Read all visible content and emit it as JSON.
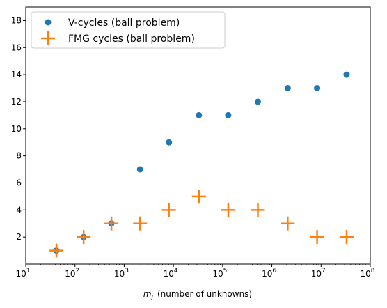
{
  "chart_data": {
    "type": "scatter",
    "xscale": "log",
    "xlim": [
      10,
      100000000
    ],
    "ylim": [
      0,
      19
    ],
    "grid": false,
    "legend_position": "top-left",
    "xlabel_math": "m",
    "xlabel_sub": "J",
    "xlabel_text": "(number of unknowns)",
    "x_tick_labels": [
      {
        "base": "10",
        "exp": "1"
      },
      {
        "base": "10",
        "exp": "2"
      },
      {
        "base": "10",
        "exp": "3"
      },
      {
        "base": "10",
        "exp": "4"
      },
      {
        "base": "10",
        "exp": "5"
      },
      {
        "base": "10",
        "exp": "6"
      },
      {
        "base": "10",
        "exp": "7"
      },
      {
        "base": "10",
        "exp": "8"
      }
    ],
    "y_ticks": [
      2,
      4,
      6,
      8,
      10,
      12,
      14,
      16,
      18
    ],
    "series": [
      {
        "name": "V-cycles (ball problem)",
        "marker": "circle",
        "color": "#1f77b4",
        "x": [
          42,
          150,
          550,
          2100,
          8100,
          33000,
          130000,
          520000,
          2100000,
          8300000,
          33000000
        ],
        "y": [
          1,
          2,
          3,
          7,
          9,
          11,
          11,
          12,
          13,
          13,
          14
        ]
      },
      {
        "name": "FMG cycles (ball problem)",
        "marker": "plus",
        "color": "#ff7f0e",
        "x": [
          42,
          150,
          550,
          2100,
          8100,
          33000,
          130000,
          520000,
          2100000,
          8300000,
          33000000
        ],
        "y": [
          1,
          2,
          3,
          3,
          4,
          5,
          4,
          4,
          3,
          2,
          2
        ]
      }
    ]
  }
}
